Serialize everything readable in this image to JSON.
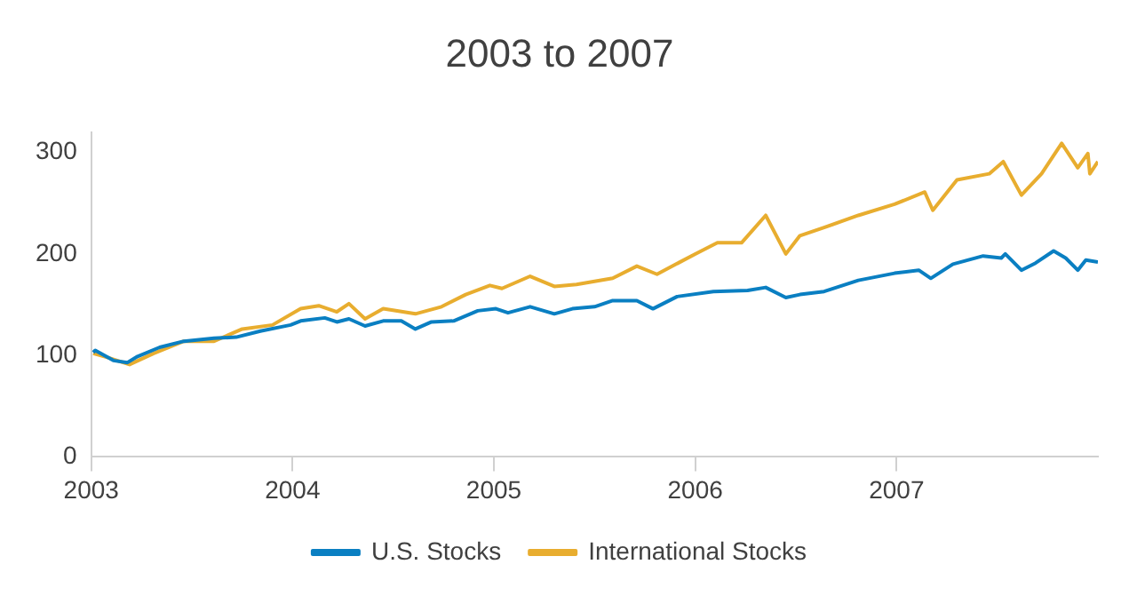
{
  "chart_data": {
    "type": "line",
    "title": "2003 to 2007",
    "xlim": [
      2003,
      2008
    ],
    "xticks": [
      2003,
      2004,
      2005,
      2006,
      2007
    ],
    "ylim": [
      0,
      320
    ],
    "yticks": [
      0,
      100,
      200,
      300
    ],
    "grid": false,
    "legend": "bottom",
    "marker": "none",
    "line_style": "solid",
    "series": [
      {
        "name": "U.S. Stocks",
        "color": "#0a7fc2",
        "x": [
          2003.01,
          2003.02,
          2003.11,
          2003.18,
          2003.23,
          2003.34,
          2003.46,
          2003.61,
          2003.72,
          2003.84,
          2003.99,
          2004.04,
          2004.16,
          2004.22,
          2004.28,
          2004.36,
          2004.45,
          2004.54,
          2004.61,
          2004.69,
          2004.8,
          2004.92,
          2005.01,
          2005.07,
          2005.18,
          2005.3,
          2005.39,
          2005.5,
          2005.59,
          2005.71,
          2005.79,
          2005.91,
          2006.09,
          2006.26,
          2006.35,
          2006.45,
          2006.52,
          2006.64,
          2006.81,
          2006.99,
          2007.11,
          2007.17,
          2007.28,
          2007.43,
          2007.52,
          2007.54,
          2007.62,
          2007.69,
          2007.78,
          2007.84,
          2007.9,
          2007.94,
          2008.0
        ],
        "values": [
          103,
          105,
          95,
          93,
          99,
          108,
          114,
          117,
          118,
          124,
          130,
          134,
          137,
          133,
          136,
          129,
          134,
          134,
          126,
          133,
          134,
          144,
          146,
          142,
          148,
          141,
          146,
          148,
          154,
          154,
          146,
          158,
          163,
          164,
          167,
          157,
          160,
          163,
          174,
          181,
          184,
          176,
          190,
          198,
          196,
          200,
          184,
          191,
          203,
          196,
          184,
          194,
          192
        ]
      },
      {
        "name": "International Stocks",
        "color": "#e8ad2f",
        "x": [
          2003.01,
          2003.08,
          2003.19,
          2003.31,
          2003.46,
          2003.61,
          2003.75,
          2003.9,
          2004.04,
          2004.13,
          2004.22,
          2004.28,
          2004.36,
          2004.45,
          2004.61,
          2004.74,
          2004.86,
          2004.98,
          2005.04,
          2005.18,
          2005.3,
          2005.41,
          2005.59,
          2005.71,
          2005.81,
          2006.0,
          2006.11,
          2006.23,
          2006.35,
          2006.45,
          2006.52,
          2006.64,
          2006.81,
          2006.99,
          2007.14,
          2007.18,
          2007.3,
          2007.46,
          2007.53,
          2007.62,
          2007.72,
          2007.82,
          2007.9,
          2007.95,
          2007.96,
          2008.0
        ],
        "values": [
          102,
          98,
          91,
          102,
          114,
          114,
          126,
          130,
          146,
          149,
          143,
          151,
          136,
          146,
          141,
          148,
          160,
          169,
          166,
          178,
          168,
          170,
          176,
          188,
          180,
          200,
          211,
          211,
          238,
          200,
          218,
          226,
          238,
          249,
          261,
          243,
          273,
          279,
          291,
          258,
          279,
          309,
          285,
          299,
          279,
          291
        ]
      }
    ]
  }
}
